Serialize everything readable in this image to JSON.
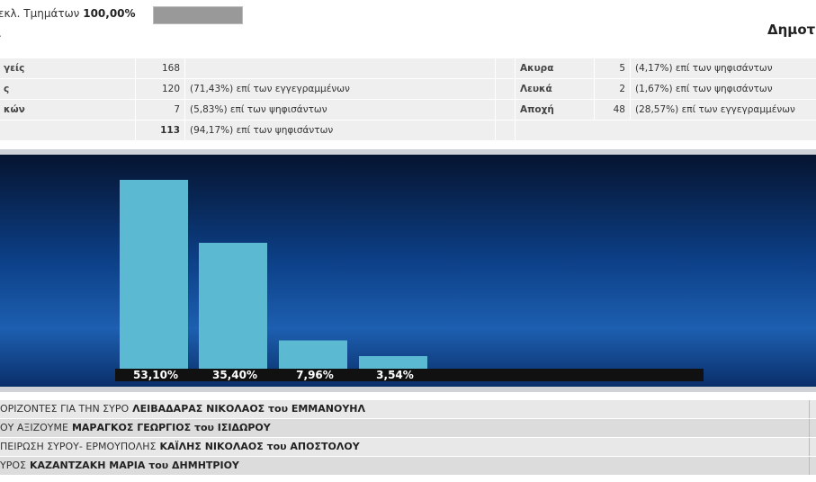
{
  "header": {
    "progress_label": "εκλ. Τμημάτων",
    "progress_value": "100,00%",
    "second_line": ".",
    "right_title": "Δημοτ"
  },
  "stats": {
    "rows": [
      [
        "γείς",
        "168",
        "",
        "Ακυρα",
        "5",
        "(4,17%) επί των ψηφισάντων"
      ],
      [
        "ς",
        "120",
        "(71,43%) επί των εγγεγραμμένων",
        "Λευκά",
        "2",
        "(1,67%) επί των ψηφισάντων"
      ],
      [
        "κών",
        "7",
        "(5,83%) επί των ψηφισάντων",
        "Αποχή",
        "48",
        "(28,57%) επί των εγγεγραμμένων"
      ],
      [
        "",
        "113",
        "(94,17%) επί των ψηφισάντων"
      ]
    ]
  },
  "chart": {
    "values": [
      53.1,
      35.4,
      7.96,
      3.54
    ],
    "value_labels": [
      "53,10%",
      "35,40%",
      "7,96%",
      "3,54%"
    ],
    "color": "#5cb9d2"
  },
  "parties": [
    {
      "party": "ΟΡΙΖΟΝΤΕΣ ΓΙΑ ΤΗΝ ΣΥΡΟ",
      "candidate": "ΛΕΙΒΑΔΑΡΑΣ ΝΙΚΟΛΑΟΣ του ΕΜΜΑΝΟΥΗΛ"
    },
    {
      "party": "ΟΥ ΑΞΙΖΟΥΜΕ",
      "candidate": "ΜΑΡΑΓΚΟΣ ΓΕΩΡΓΙΟΣ του ΙΣΙΔΩΡΟΥ"
    },
    {
      "party": "ΠΕΙΡΩΣΗ ΣΥΡΟΥ- ΕΡΜΟΥΠΟΛΗΣ",
      "candidate": "ΚΑΪΛΗΣ ΝΙΚΟΛΑΟΣ του ΑΠΟΣΤΟΛΟΥ"
    },
    {
      "party": "ΥΡΟΣ",
      "candidate": "ΚΑΖΑΝΤΖΑΚΗ ΜΑΡΙΑ του ΔΗΜΗΤΡΙΟΥ"
    }
  ]
}
